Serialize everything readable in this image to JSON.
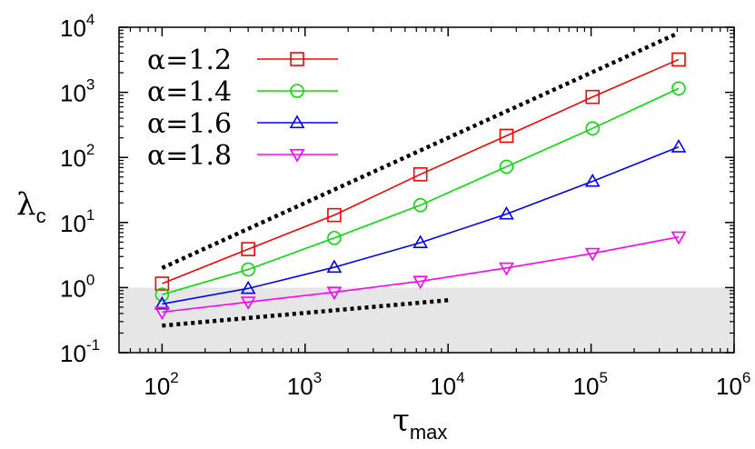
{
  "chart_data": {
    "type": "line",
    "x_scale": "log",
    "y_scale": "log",
    "xlim": [
      50,
      1000000
    ],
    "ylim": [
      0.1,
      10000
    ],
    "xlabel": "τ",
    "xlabel_sub": "max",
    "ylabel": "λ",
    "ylabel_sub": "c",
    "x_ticks": [
      {
        "base": "10",
        "exp": "2",
        "value": 100
      },
      {
        "base": "10",
        "exp": "3",
        "value": 1000
      },
      {
        "base": "10",
        "exp": "4",
        "value": 10000
      },
      {
        "base": "10",
        "exp": "5",
        "value": 100000
      },
      {
        "base": "10",
        "exp": "6",
        "value": 1000000
      }
    ],
    "y_ticks": [
      {
        "base": "10",
        "exp": "-1",
        "value": 0.1
      },
      {
        "base": "10",
        "exp": "0",
        "value": 1
      },
      {
        "base": "10",
        "exp": "1",
        "value": 10
      },
      {
        "base": "10",
        "exp": "2",
        "value": 100
      },
      {
        "base": "10",
        "exp": "3",
        "value": 1000
      },
      {
        "base": "10",
        "exp": "4",
        "value": 10000
      }
    ],
    "shaded_band": {
      "y_from": 0.1,
      "y_to": 1,
      "color": "#e6e6e6"
    },
    "legend_position": "top-left",
    "grid": false,
    "x": [
      100,
      400,
      1600,
      6400,
      25600,
      102400,
      409600
    ],
    "series": [
      {
        "name": "α=1.2",
        "color": "#ff0000",
        "marker": "square",
        "values": [
          1.15,
          3.9,
          13,
          55,
          215,
          850,
          3200
        ]
      },
      {
        "name": "α=1.4",
        "color": "#00e000",
        "marker": "circle",
        "values": [
          0.78,
          1.9,
          5.8,
          18.5,
          72,
          280,
          1150
        ]
      },
      {
        "name": "α=1.6",
        "color": "#0000ff",
        "marker": "triangle-up",
        "values": [
          0.56,
          0.97,
          2.05,
          4.9,
          13.5,
          43,
          145
        ]
      },
      {
        "name": "α=1.8",
        "color": "#ff00ff",
        "marker": "triangle-down",
        "values": [
          0.42,
          0.6,
          0.85,
          1.25,
          2.0,
          3.35,
          6.0
        ]
      }
    ],
    "reference_lines": [
      {
        "style": "dotted",
        "color": "#000000",
        "x": [
          100,
          400000
        ],
        "y": [
          2.0,
          8000
        ]
      },
      {
        "style": "dotted",
        "color": "#000000",
        "x": [
          100,
          10000
        ],
        "y": [
          0.26,
          0.64
        ]
      }
    ]
  }
}
